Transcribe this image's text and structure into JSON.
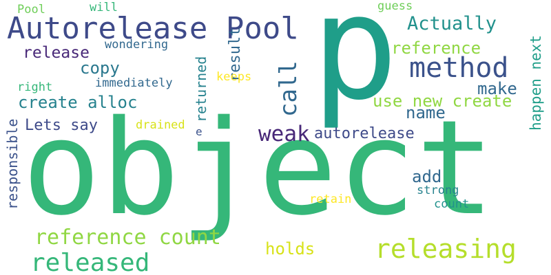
{
  "colors": {
    "background": "#ffffff",
    "viridis": [
      "#440154",
      "#3b528b",
      "#21918c",
      "#5ec962",
      "#fde725"
    ]
  },
  "words": [
    {
      "text": "object",
      "color": "#35b779"
    },
    {
      "text": "p",
      "color": "#1f9e89"
    },
    {
      "text": "Autorelease Pool",
      "color": "#3e4a89"
    },
    {
      "text": "method",
      "color": "#3b528b"
    },
    {
      "text": "releasing",
      "color": "#b5de2b"
    },
    {
      "text": "released",
      "color": "#35b779"
    },
    {
      "text": "reference count",
      "color": "#90d743"
    },
    {
      "text": "call",
      "color": "#31688e"
    },
    {
      "text": "weak",
      "color": "#482878"
    },
    {
      "text": "autorelease",
      "color": "#3e4a89"
    },
    {
      "text": "Actually",
      "color": "#21918c"
    },
    {
      "text": "reference",
      "color": "#90d743"
    },
    {
      "text": "use new create",
      "color": "#90d743"
    },
    {
      "text": "create alloc",
      "color": "#26828e"
    },
    {
      "text": "copy",
      "color": "#2a788e"
    },
    {
      "text": "release",
      "color": "#482878"
    },
    {
      "text": "make",
      "color": "#31688e"
    },
    {
      "text": "name",
      "color": "#31688e"
    },
    {
      "text": "Lets say",
      "color": "#3e4a89"
    },
    {
      "text": "holds",
      "color": "#d8e219"
    },
    {
      "text": "add",
      "color": "#31688e"
    },
    {
      "text": "result",
      "color": "#31688e"
    },
    {
      "text": "returned",
      "color": "#26828e"
    },
    {
      "text": "responsible",
      "color": "#3b528b"
    },
    {
      "text": "happen next",
      "color": "#1f9e89"
    },
    {
      "text": "wondering",
      "color": "#31688e"
    },
    {
      "text": "immediately",
      "color": "#31688e"
    },
    {
      "text": "right",
      "color": "#35b779"
    },
    {
      "text": "drained",
      "color": "#d8e219"
    },
    {
      "text": "keeps",
      "color": "#fde725"
    },
    {
      "text": "strong",
      "color": "#26828e"
    },
    {
      "text": "count",
      "color": "#21918c"
    },
    {
      "text": "retain",
      "color": "#fde725"
    },
    {
      "text": "guess",
      "color": "#6ece58"
    },
    {
      "text": "Pool",
      "color": "#6ece58"
    },
    {
      "text": "will",
      "color": "#35b779"
    },
    {
      "text": "e",
      "color": "#3b528b"
    }
  ]
}
